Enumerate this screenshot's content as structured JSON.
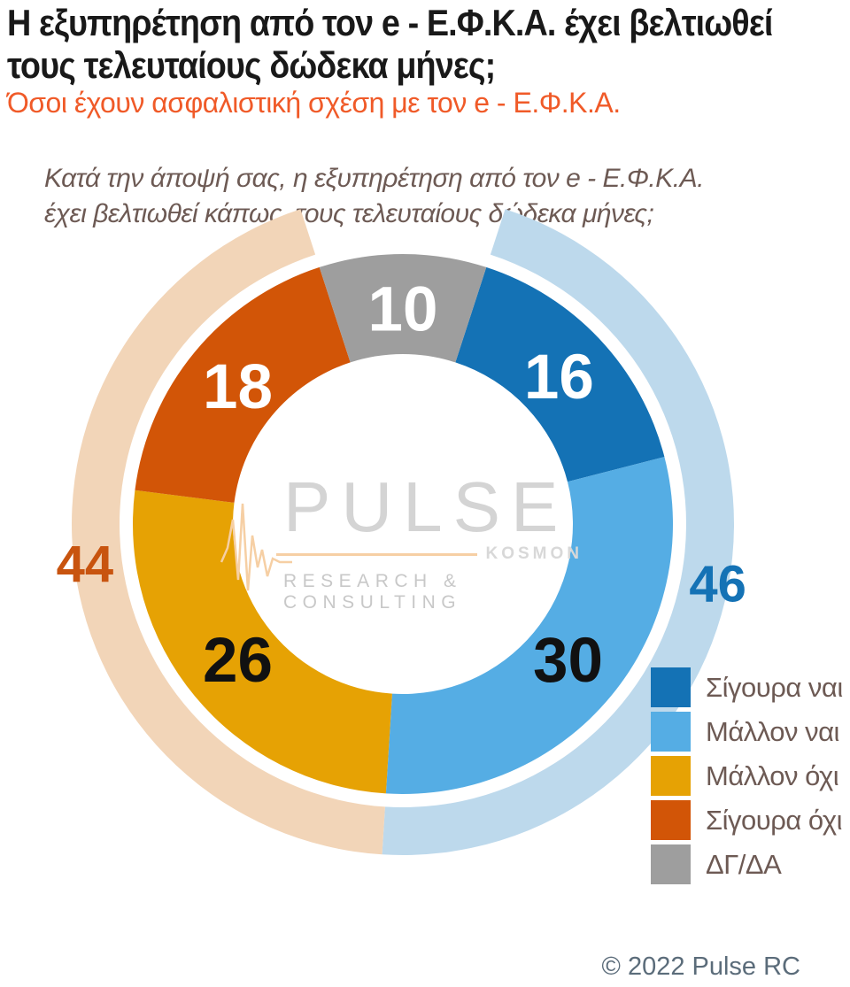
{
  "header": {
    "title": "Η εξυπηρέτηση από τον e - Ε.Φ.Κ.Α. έχει βελτιωθεί\nτους τελευταίους δώδεκα μήνες;",
    "subtitle": "Όσοι έχουν ασφαλιστική σχέση με τον e - Ε.Φ.Κ.Α.",
    "question": "Κατά την άποψή σας, η εξυπηρέτηση από τον e - Ε.Φ.Κ.Α.\nέχει βελτιωθεί κάπως, τους τελευταίους δώδεκα μήνες;"
  },
  "chart_data": {
    "type": "pie",
    "subtype": "donut",
    "units": "percent",
    "clockwise": true,
    "start_fraction": 0.05,
    "legend_position": "bottom-right",
    "segments": [
      {
        "label": "Σίγουρα ναι",
        "value": 16,
        "color": "#1472b5",
        "value_label_color": "#ffffff"
      },
      {
        "label": "Μάλλον ναι",
        "value": 30,
        "color": "#55ade4",
        "value_label_color": "#111111"
      },
      {
        "label": "Μάλλον όχι",
        "value": 26,
        "color": "#e6a204",
        "value_label_color": "#111111"
      },
      {
        "label": "Σίγουρα όχι",
        "value": 18,
        "color": "#d25507",
        "value_label_color": "#ffffff"
      },
      {
        "label": "ΔΓ/ΔΑ",
        "value": 10,
        "color": "#9e9e9e",
        "value_label_color": "#ffffff"
      }
    ],
    "outer_arcs": [
      {
        "value": 46,
        "color": "#bdd9ec",
        "value_label_color": "#1472b5",
        "spans_segments": [
          "Σίγουρα ναι",
          "Μάλλον ναι"
        ]
      },
      {
        "value": 44,
        "color": "#f2d5b8",
        "value_label_color": "#c8540f",
        "spans_segments": [
          "Μάλλον όχι",
          "Σίγουρα όχι"
        ]
      }
    ]
  },
  "logo": {
    "name": "PULSE",
    "mark": "KOSMON",
    "tagline": "RESEARCH & CONSULTING"
  },
  "footer": {
    "copyright": "© 2022 Pulse RC"
  }
}
